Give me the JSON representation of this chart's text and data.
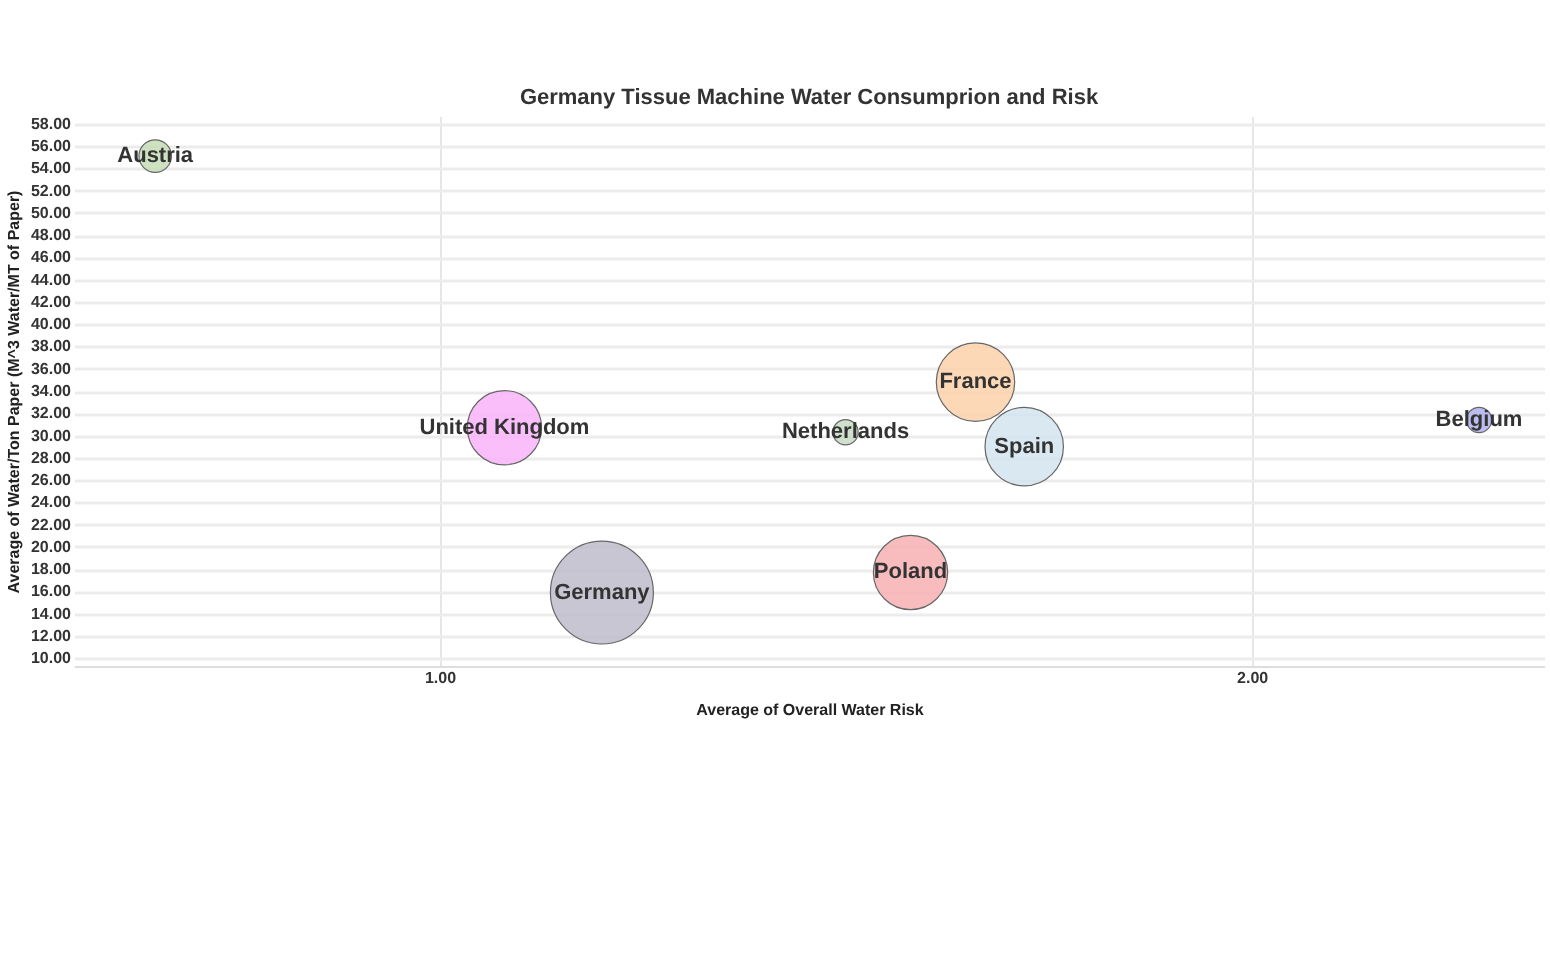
{
  "chart_data": {
    "type": "bubble",
    "title": "Germany Tissue Machine Water Consumprion and Risk",
    "xlabel": "Average of Overall Water Risk",
    "ylabel": "Average of Water/Ton Paper (M^3 Water/MT of Paper)",
    "xlim": [
      0.55,
      2.36
    ],
    "ylim": [
      9.3,
      58.7
    ],
    "xticks": [
      {
        "value": 1,
        "label": "1.00"
      },
      {
        "value": 2,
        "label": "2.00"
      }
    ],
    "yticks": [
      {
        "value": 10,
        "label": "10.00"
      },
      {
        "value": 12,
        "label": "12.00"
      },
      {
        "value": 14,
        "label": "14.00"
      },
      {
        "value": 16,
        "label": "16.00"
      },
      {
        "value": 18,
        "label": "18.00"
      },
      {
        "value": 20,
        "label": "20.00"
      },
      {
        "value": 22,
        "label": "22.00"
      },
      {
        "value": 24,
        "label": "24.00"
      },
      {
        "value": 26,
        "label": "26.00"
      },
      {
        "value": 28,
        "label": "28.00"
      },
      {
        "value": 30,
        "label": "30.00"
      },
      {
        "value": 32,
        "label": "32.00"
      },
      {
        "value": 34,
        "label": "34.00"
      },
      {
        "value": 36,
        "label": "36.00"
      },
      {
        "value": 38,
        "label": "38.00"
      },
      {
        "value": 40,
        "label": "40.00"
      },
      {
        "value": 42,
        "label": "42.00"
      },
      {
        "value": 44,
        "label": "44.00"
      },
      {
        "value": 46,
        "label": "46.00"
      },
      {
        "value": 48,
        "label": "48.00"
      },
      {
        "value": 50,
        "label": "50.00"
      },
      {
        "value": 52,
        "label": "52.00"
      },
      {
        "value": 54,
        "label": "54.00"
      },
      {
        "value": 56,
        "label": "56.00"
      },
      {
        "value": 58,
        "label": "58.00"
      }
    ],
    "grid": true,
    "legend": false,
    "marker": "circle",
    "series": [
      {
        "name": "Austria",
        "color": "#c5dcb5",
        "x": [
          0.65
        ],
        "values": [
          55.1
        ],
        "sizes": [
          0.1
        ]
      },
      {
        "name": "United Kingdom",
        "color": "#f9b3f9",
        "x": [
          1.08
        ],
        "values": [
          30.7
        ],
        "sizes": [
          0.52
        ]
      },
      {
        "name": "Germany",
        "color": "#bfbccb",
        "x": [
          1.2
        ],
        "values": [
          15.9
        ],
        "sizes": [
          1
        ]
      },
      {
        "name": "Netherlands",
        "color": "#c7dcc3",
        "x": [
          1.5
        ],
        "values": [
          30.3
        ],
        "sizes": [
          0.06
        ]
      },
      {
        "name": "France",
        "color": "#fdd1a9",
        "x": [
          1.66
        ],
        "values": [
          34.8
        ],
        "sizes": [
          0.58
        ]
      },
      {
        "name": "Spain",
        "color": "#d3e5ee",
        "x": [
          1.72
        ],
        "values": [
          29
        ],
        "sizes": [
          0.58
        ]
      },
      {
        "name": "Poland",
        "color": "#f8b0b3",
        "x": [
          1.58
        ],
        "values": [
          17.7
        ],
        "sizes": [
          0.52
        ]
      },
      {
        "name": "Belgium",
        "color": "#b0b0ee",
        "x": [
          2.28
        ],
        "values": [
          31.4
        ],
        "sizes": [
          0.06
        ]
      }
    ]
  }
}
